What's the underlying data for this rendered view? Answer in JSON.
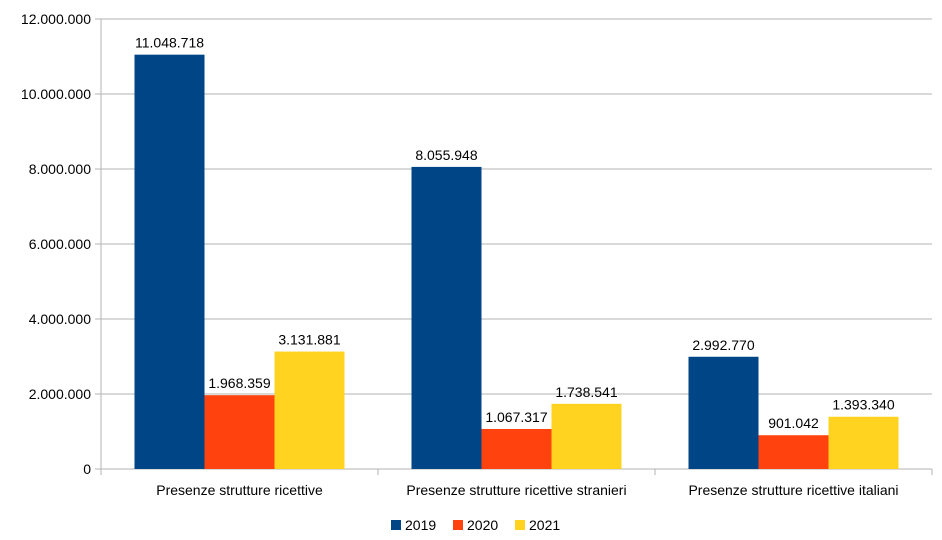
{
  "chart_data": {
    "type": "bar",
    "categories": [
      "Presenze strutture ricettive",
      "Presenze strutture ricettive stranieri",
      "Presenze strutture ricettive italiani"
    ],
    "series": [
      {
        "name": "2019",
        "color": "#004586",
        "values": [
          11048718,
          8055948,
          2992770
        ],
        "labels": [
          "11.048.718",
          "8.055.948",
          "2.992.770"
        ]
      },
      {
        "name": "2020",
        "color": "#FF420E",
        "values": [
          1968359,
          1067317,
          901042
        ],
        "labels": [
          "1.968.359",
          "1.067.317",
          "901.042"
        ]
      },
      {
        "name": "2021",
        "color": "#FFD320",
        "values": [
          3131881,
          1738541,
          1393340
        ],
        "labels": [
          "3.131.881",
          "1.738.541",
          "1.393.340"
        ]
      }
    ],
    "ylim": [
      0,
      12000000
    ],
    "yticks": [
      0,
      2000000,
      4000000,
      6000000,
      8000000,
      10000000,
      12000000
    ],
    "ytick_labels": [
      "0",
      "2.000.000",
      "4.000.000",
      "6.000.000",
      "8.000.000",
      "10.000.000",
      "12.000.000"
    ],
    "grid": true,
    "legend_position": "bottom-center"
  }
}
